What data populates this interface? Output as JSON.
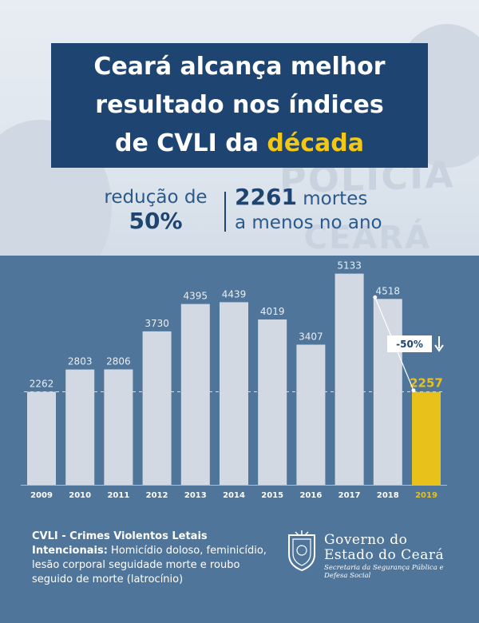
{
  "header": {
    "title_line1": "Ceará alcança melhor",
    "title_line2": "resultado nos índices",
    "title_line3_a": "de CVLI da ",
    "title_line3_b": "década",
    "accent_color": "#f2c716",
    "navy_color": "#1e4571"
  },
  "background_text": {
    "word1": "POLÍCIA",
    "word2": "CEARÁ"
  },
  "stats": {
    "reduction_label": "redução de",
    "reduction_value": "50%",
    "deaths_value": "2261",
    "deaths_label": " mortes",
    "deaths_label2": "a menos no ano"
  },
  "chart_data": {
    "type": "bar",
    "categories": [
      "2009",
      "2010",
      "2011",
      "2012",
      "2013",
      "2014",
      "2015",
      "2016",
      "2017",
      "2018",
      "2019"
    ],
    "values": [
      2262,
      2803,
      2806,
      3730,
      4395,
      4439,
      4019,
      3407,
      5133,
      4518,
      2257
    ],
    "highlight_index": 10,
    "highlight_color": "#e8c21a",
    "bar_color": "#d2d9e3",
    "annotation": "-50%",
    "reference_line_value": 2262,
    "ylim": [
      0,
      5300
    ]
  },
  "footer": {
    "definition_title": "CVLI - Crimes Violentos Letais Intencionais:",
    "definition_body": " Homicídio doloso, feminicídio, lesão corporal seguidade morte e roubo seguido  de morte (latrocínio)",
    "gov_line1": "Governo do",
    "gov_line2": "Estado do Ceará",
    "gov_line3": "Secretaria da Segurança Pública e Defesa Social"
  }
}
